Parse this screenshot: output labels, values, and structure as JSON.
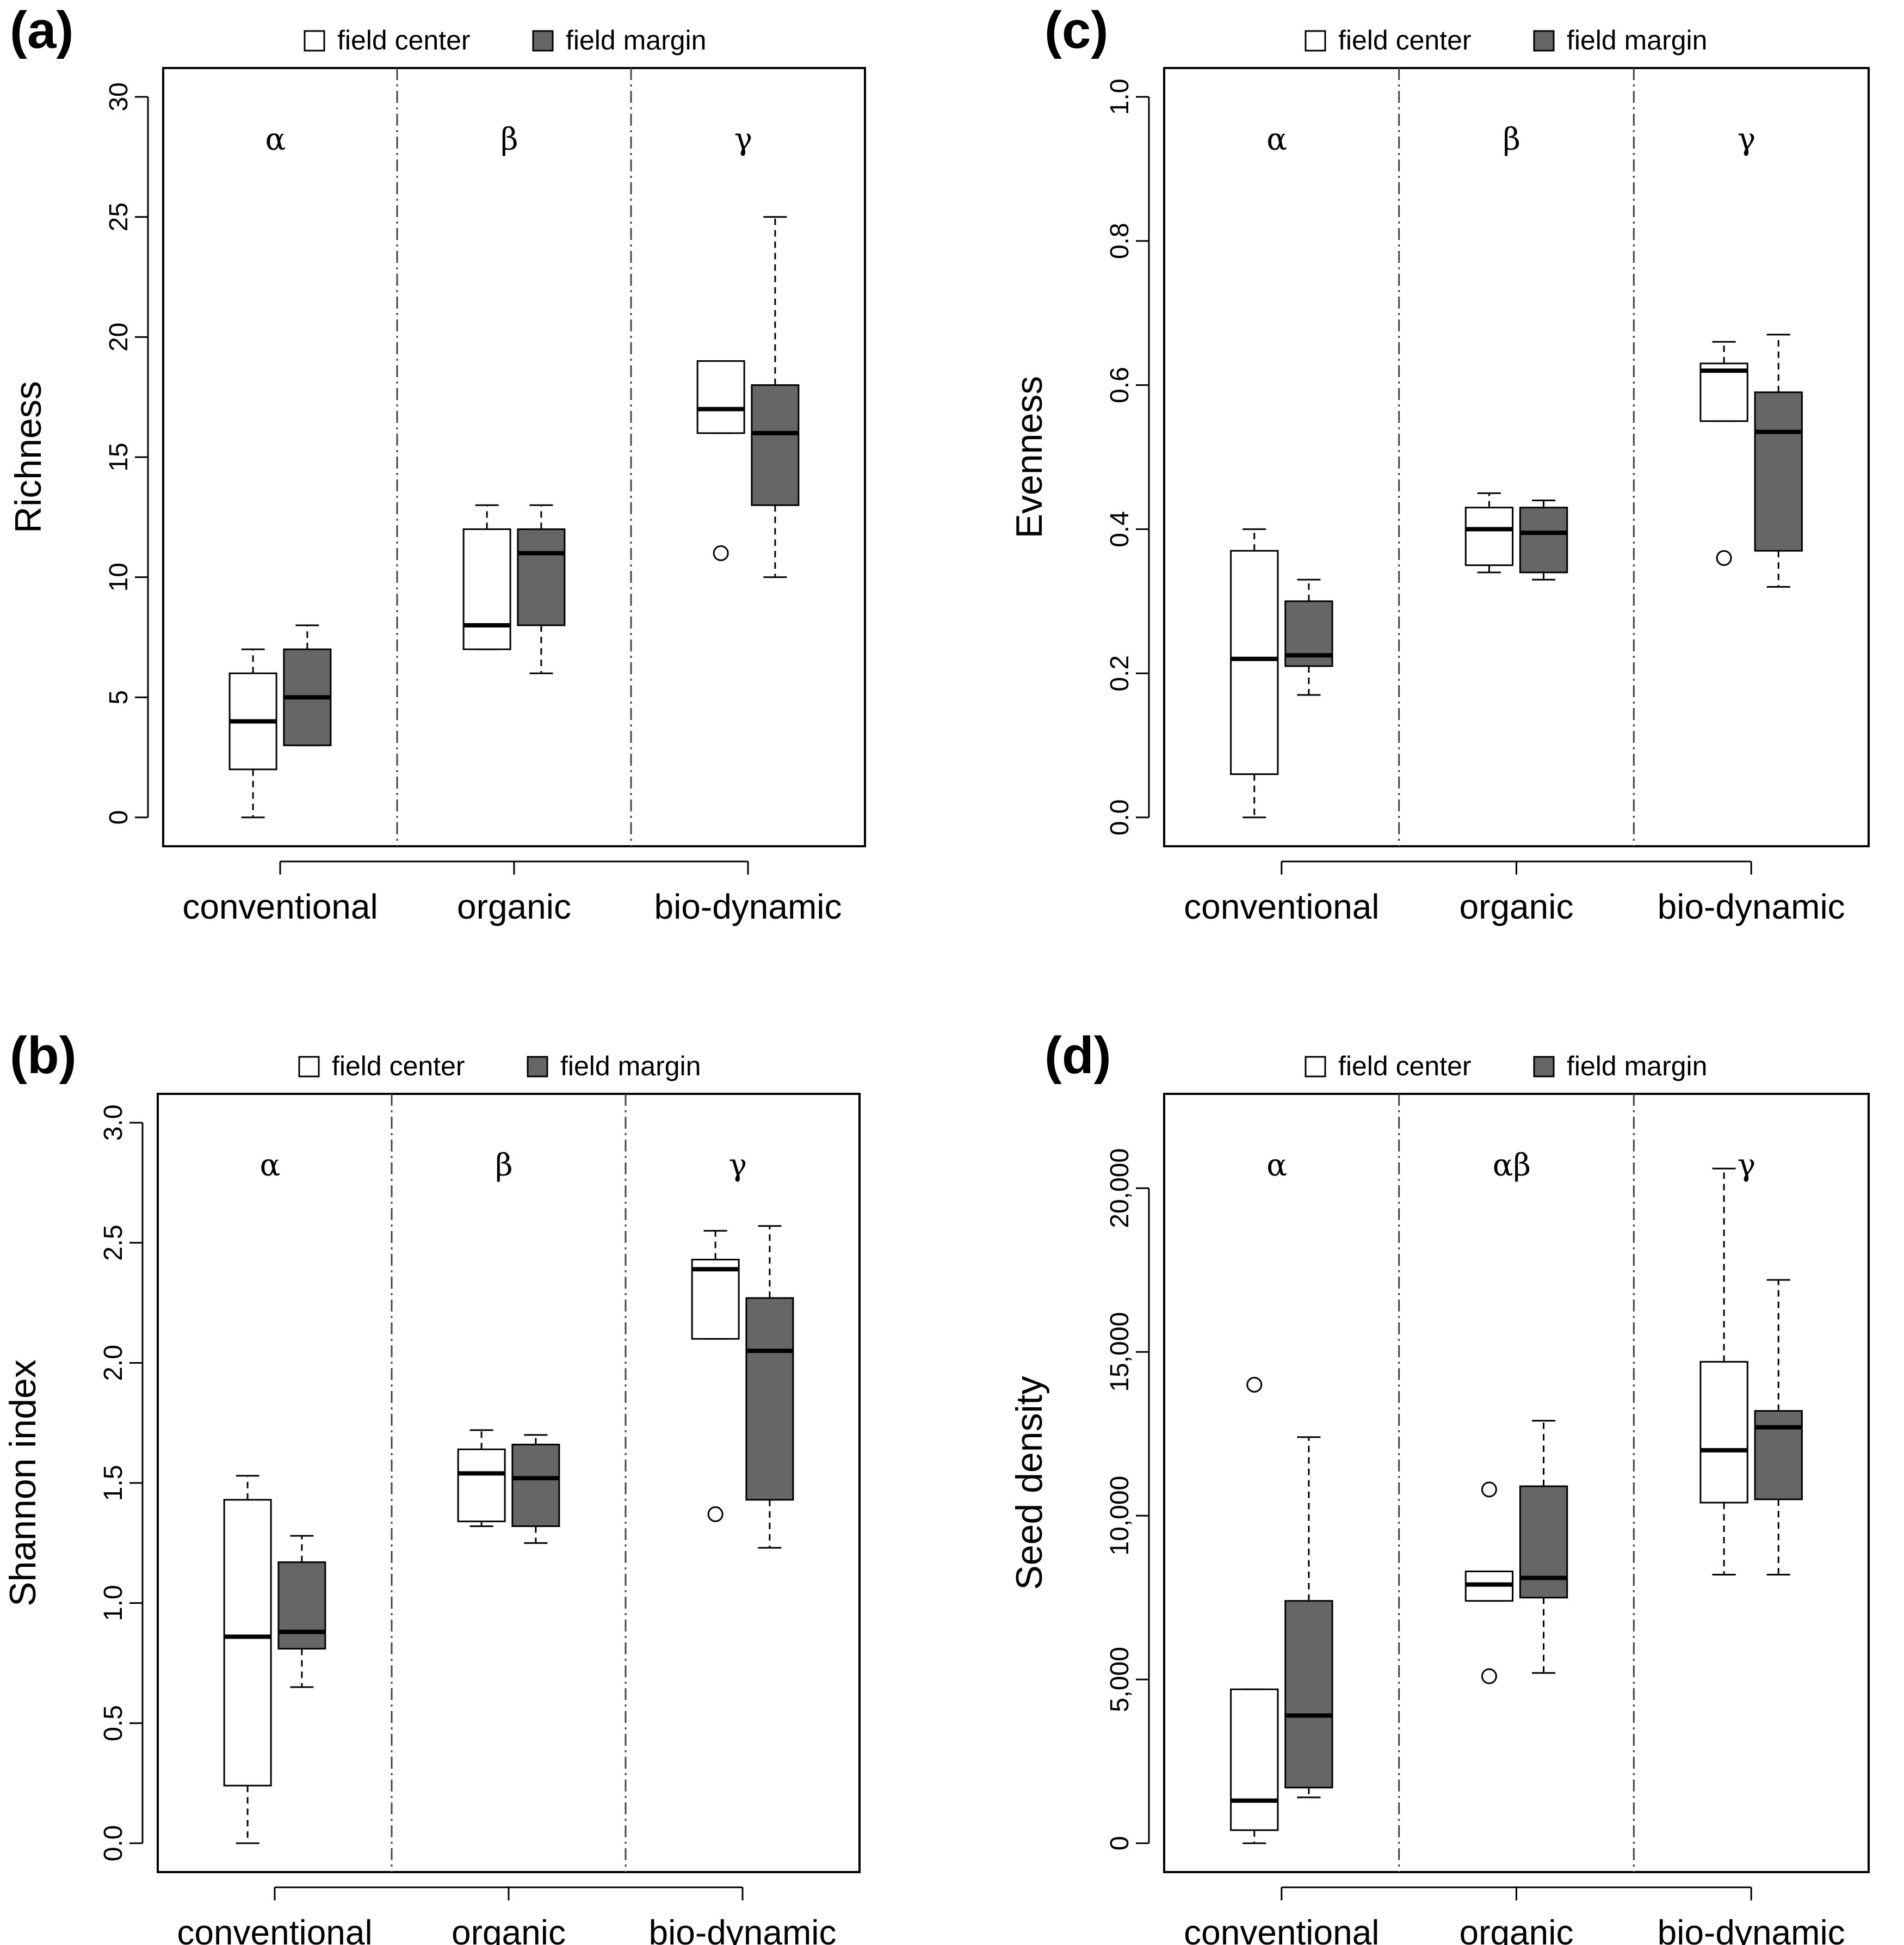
{
  "colors": {
    "center_fill": "#ffffff",
    "margin_fill": "#666666",
    "stroke": "#000000",
    "separator": "#444444"
  },
  "chart_data": [
    {
      "type": "box",
      "panel_label": "(a)",
      "ylabel": "Richness",
      "ylim": [
        0,
        30
      ],
      "yticks": [
        0,
        5,
        10,
        15,
        20,
        25,
        30
      ],
      "ytick_labels": [
        "0",
        "5",
        "10",
        "15",
        "20",
        "25",
        "30"
      ],
      "categories": [
        "conventional",
        "organic",
        "bio-dynamic"
      ],
      "group_letters": [
        "α",
        "β",
        "γ"
      ],
      "legend": [
        "field center",
        "field margin"
      ],
      "legend_position": "top",
      "series": [
        {
          "name": "field center",
          "boxes": [
            {
              "whisker_low": 0,
              "q1": 2,
              "median": 4,
              "q3": 6,
              "whisker_high": 7,
              "outliers": []
            },
            {
              "whisker_low": 7,
              "q1": 7,
              "median": 8,
              "q3": 12,
              "whisker_high": 13,
              "outliers": []
            },
            {
              "whisker_low": 16,
              "q1": 16,
              "median": 17,
              "q3": 19,
              "whisker_high": 19,
              "outliers": [
                11
              ]
            }
          ]
        },
        {
          "name": "field margin",
          "boxes": [
            {
              "whisker_low": 3,
              "q1": 3,
              "median": 5,
              "q3": 7,
              "whisker_high": 8,
              "outliers": []
            },
            {
              "whisker_low": 6,
              "q1": 8,
              "median": 11,
              "q3": 12,
              "whisker_high": 13,
              "outliers": []
            },
            {
              "whisker_low": 10,
              "q1": 13,
              "median": 16,
              "q3": 18,
              "whisker_high": 25,
              "outliers": []
            }
          ]
        }
      ]
    },
    {
      "type": "box",
      "panel_label": "(b)",
      "ylabel": "Shannon index",
      "ylim": [
        0,
        3
      ],
      "yticks": [
        0,
        0.5,
        1,
        1.5,
        2,
        2.5,
        3
      ],
      "ytick_labels": [
        "0.0",
        "0.5",
        "1.0",
        "1.5",
        "2.0",
        "2.5",
        "3.0"
      ],
      "categories": [
        "conventional",
        "organic",
        "bio-dynamic"
      ],
      "group_letters": [
        "α",
        "β",
        "γ"
      ],
      "legend": [
        "field center",
        "field margin"
      ],
      "legend_position": "top",
      "series": [
        {
          "name": "field center",
          "boxes": [
            {
              "whisker_low": 0,
              "q1": 0.24,
              "median": 0.86,
              "q3": 1.43,
              "whisker_high": 1.53,
              "outliers": []
            },
            {
              "whisker_low": 1.32,
              "q1": 1.34,
              "median": 1.54,
              "q3": 1.64,
              "whisker_high": 1.72,
              "outliers": []
            },
            {
              "whisker_low": 2.1,
              "q1": 2.1,
              "median": 2.39,
              "q3": 2.43,
              "whisker_high": 2.55,
              "outliers": [
                1.37
              ]
            }
          ]
        },
        {
          "name": "field margin",
          "boxes": [
            {
              "whisker_low": 0.65,
              "q1": 0.81,
              "median": 0.88,
              "q3": 1.17,
              "whisker_high": 1.28,
              "outliers": []
            },
            {
              "whisker_low": 1.25,
              "q1": 1.32,
              "median": 1.52,
              "q3": 1.66,
              "whisker_high": 1.7,
              "outliers": []
            },
            {
              "whisker_low": 1.23,
              "q1": 1.43,
              "median": 2.05,
              "q3": 2.27,
              "whisker_high": 2.57,
              "outliers": []
            }
          ]
        }
      ]
    },
    {
      "type": "box",
      "panel_label": "(c)",
      "ylabel": "Evenness",
      "ylim": [
        0,
        1
      ],
      "yticks": [
        0,
        0.2,
        0.4,
        0.6,
        0.8,
        1
      ],
      "ytick_labels": [
        "0.0",
        "0.2",
        "0.4",
        "0.6",
        "0.8",
        "1.0"
      ],
      "categories": [
        "conventional",
        "organic",
        "bio-dynamic"
      ],
      "group_letters": [
        "α",
        "β",
        "γ"
      ],
      "legend": [
        "field center",
        "field margin"
      ],
      "legend_position": "top",
      "series": [
        {
          "name": "field center",
          "boxes": [
            {
              "whisker_low": 0,
              "q1": 0.06,
              "median": 0.22,
              "q3": 0.37,
              "whisker_high": 0.4,
              "outliers": []
            },
            {
              "whisker_low": 0.34,
              "q1": 0.35,
              "median": 0.4,
              "q3": 0.43,
              "whisker_high": 0.45,
              "outliers": []
            },
            {
              "whisker_low": 0.55,
              "q1": 0.55,
              "median": 0.62,
              "q3": 0.63,
              "whisker_high": 0.66,
              "outliers": [
                0.36
              ]
            }
          ]
        },
        {
          "name": "field margin",
          "boxes": [
            {
              "whisker_low": 0.17,
              "q1": 0.21,
              "median": 0.225,
              "q3": 0.3,
              "whisker_high": 0.33,
              "outliers": []
            },
            {
              "whisker_low": 0.33,
              "q1": 0.34,
              "median": 0.395,
              "q3": 0.43,
              "whisker_high": 0.44,
              "outliers": []
            },
            {
              "whisker_low": 0.32,
              "q1": 0.37,
              "median": 0.535,
              "q3": 0.59,
              "whisker_high": 0.67,
              "outliers": []
            }
          ]
        }
      ]
    },
    {
      "type": "box",
      "panel_label": "(d)",
      "ylabel": "Seed density",
      "ylim": [
        0,
        22000
      ],
      "yticks": [
        0,
        5000,
        10000,
        15000,
        20000
      ],
      "ytick_labels": [
        "0",
        "5,000",
        "10,000",
        "15,000",
        "20,000"
      ],
      "categories": [
        "conventional",
        "organic",
        "bio-dynamic"
      ],
      "group_letters": [
        "α",
        "αβ",
        "γ"
      ],
      "legend": [
        "field center",
        "field margin"
      ],
      "legend_position": "top",
      "series": [
        {
          "name": "field center",
          "boxes": [
            {
              "whisker_low": 0,
              "q1": 400,
              "median": 1300,
              "q3": 4700,
              "whisker_high": 4700,
              "outliers": [
                14000
              ]
            },
            {
              "whisker_low": 7400,
              "q1": 7400,
              "median": 7900,
              "q3": 8300,
              "whisker_high": 8300,
              "outliers": [
                10800,
                5100
              ]
            },
            {
              "whisker_low": 8200,
              "q1": 10400,
              "median": 12000,
              "q3": 14700,
              "whisker_high": 20600,
              "outliers": []
            }
          ]
        },
        {
          "name": "field margin",
          "boxes": [
            {
              "whisker_low": 1400,
              "q1": 1700,
              "median": 3900,
              "q3": 7400,
              "whisker_high": 12400,
              "outliers": []
            },
            {
              "whisker_low": 5200,
              "q1": 7500,
              "median": 8100,
              "q3": 10900,
              "whisker_high": 12900,
              "outliers": []
            },
            {
              "whisker_low": 8200,
              "q1": 10500,
              "median": 12700,
              "q3": 13200,
              "whisker_high": 17200,
              "outliers": []
            }
          ]
        }
      ]
    }
  ]
}
